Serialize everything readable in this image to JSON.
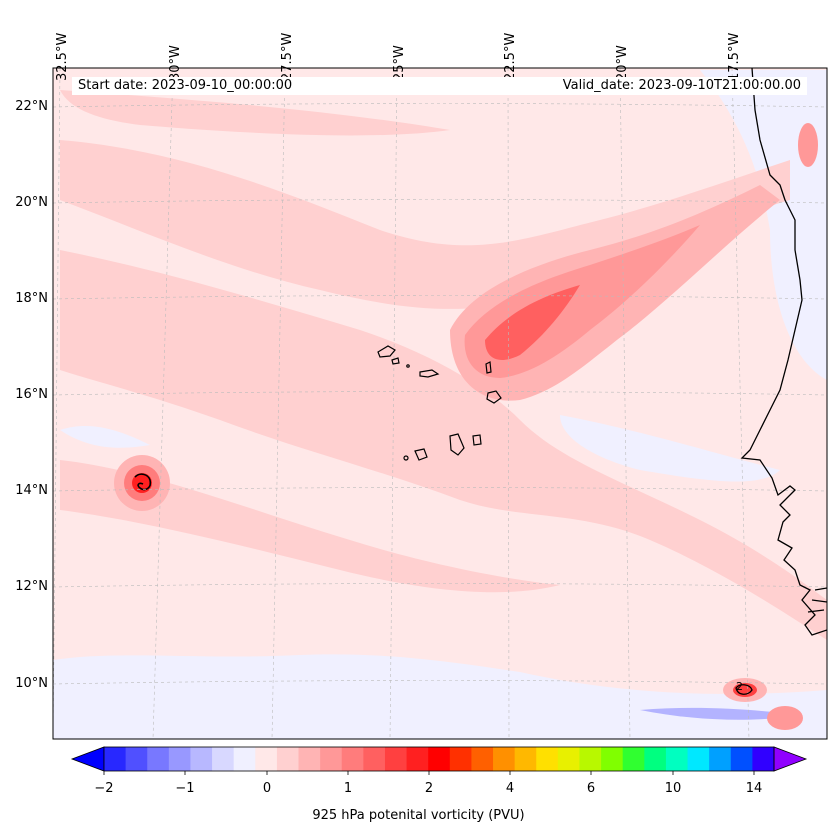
{
  "map": {
    "start_date": "Start date: 2023-09-10_00:00:00",
    "valid_date": "Valid_date: 2023-09-10T21:00:00.00",
    "longitude_labels": [
      "32.5°W",
      "30°W",
      "27.5°W",
      "25°W",
      "22.5°W",
      "20°W",
      "17.5°W"
    ],
    "latitude_labels": [
      "22°N",
      "20°N",
      "18°N",
      "16°N",
      "14°N",
      "12°N",
      "10°N"
    ],
    "center_marker_labels": [
      "2"
    ]
  },
  "colorbar": {
    "label": "925 hPa potenital vorticity (PVU)",
    "tick_labels": [
      "−2",
      "−1",
      "0",
      "1",
      "2",
      "4",
      "6",
      "10",
      "14"
    ],
    "colors": [
      "#0000ff",
      "#2828ff",
      "#5050ff",
      "#7878ff",
      "#9898ff",
      "#b8b8ff",
      "#d8d8ff",
      "#f0f0ff",
      "#ffe8e8",
      "#ffd0d0",
      "#ffb4b4",
      "#ff9898",
      "#ff7c7c",
      "#ff6060",
      "#ff4040",
      "#ff2020",
      "#ff0000",
      "#ff3000",
      "#ff6000",
      "#ff9000",
      "#ffb800",
      "#ffe000",
      "#e8f000",
      "#b8f800",
      "#80ff00",
      "#30ff30",
      "#00ff80",
      "#00ffc0",
      "#00e8ff",
      "#00a0ff",
      "#0050ff",
      "#3000ff",
      "#9000ff"
    ]
  }
}
